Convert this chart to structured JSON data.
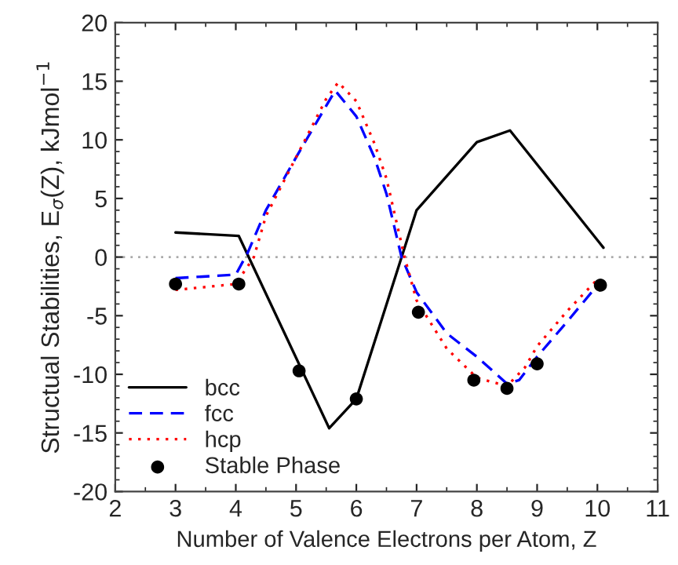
{
  "chart_data": {
    "type": "line",
    "xlabel": "Number of Valence Electrons per Atom, Z",
    "ylabel": "Structual Stabilities, E$_{σ}$(Z), kJmol$^{−1}$",
    "xlim": [
      2,
      11
    ],
    "xticks": [
      2,
      3,
      4,
      5,
      6,
      7,
      8,
      9,
      10,
      11
    ],
    "ylim": [
      -20,
      20
    ],
    "yticks": [
      -20,
      -15,
      -10,
      -5,
      0,
      5,
      10,
      15,
      20
    ],
    "grid": false,
    "legend": "bottom left",
    "ref_lines": [
      {
        "axis": "y",
        "value": 0,
        "color": "#aaaaaa",
        "line_style": "dotted"
      }
    ],
    "series": [
      {
        "name": "bcc",
        "color": "#000000",
        "line_style": "solid",
        "marker": "none",
        "x": [
          3,
          4.05,
          5.55,
          6.0,
          7.0,
          8.0,
          8.55,
          10.1
        ],
        "values": [
          2.1,
          1.8,
          -14.6,
          -12.1,
          4.0,
          9.8,
          10.8,
          0.8
        ]
      },
      {
        "name": "fcc",
        "color": "#0000ff",
        "line_style": "dashed",
        "marker": "none",
        "x": [
          3,
          4.0,
          4.2,
          4.5,
          5.0,
          5.5,
          5.65,
          6.0,
          6.3,
          6.5,
          6.75,
          7.0,
          7.5,
          8.0,
          8.5,
          8.7,
          9.0,
          9.5,
          10.05
        ],
        "values": [
          -1.8,
          -1.5,
          0.4,
          4.0,
          8.5,
          12.9,
          14.2,
          12.0,
          8.5,
          5.4,
          0.0,
          -3.0,
          -6.5,
          -8.5,
          -10.8,
          -10.5,
          -8.5,
          -5.5,
          -2.1
        ]
      },
      {
        "name": "hcp",
        "color": "#ff0000",
        "line_style": "dotted",
        "marker": "none",
        "x": [
          3,
          4.0,
          4.3,
          4.5,
          5.0,
          5.5,
          5.7,
          6.0,
          6.3,
          6.5,
          6.8,
          7.0,
          7.5,
          8.0,
          8.5,
          8.8,
          9.0,
          9.5,
          10.0
        ],
        "values": [
          -2.8,
          -2.3,
          0.0,
          3.5,
          8.5,
          13.5,
          14.9,
          13.3,
          9.7,
          6.7,
          0.0,
          -3.7,
          -7.8,
          -10.3,
          -11.0,
          -9.4,
          -7.6,
          -4.6,
          -1.9
        ]
      },
      {
        "name": "Stable Phase",
        "type": "scatter",
        "color": "#000000",
        "marker": "circle",
        "x": [
          3,
          4.05,
          5.05,
          6.0,
          7.03,
          7.95,
          8.5,
          9.0,
          10.05
        ],
        "values": [
          -2.3,
          -2.3,
          -9.7,
          -12.1,
          -4.7,
          -10.5,
          -11.2,
          -9.1,
          -2.4
        ]
      }
    ]
  }
}
